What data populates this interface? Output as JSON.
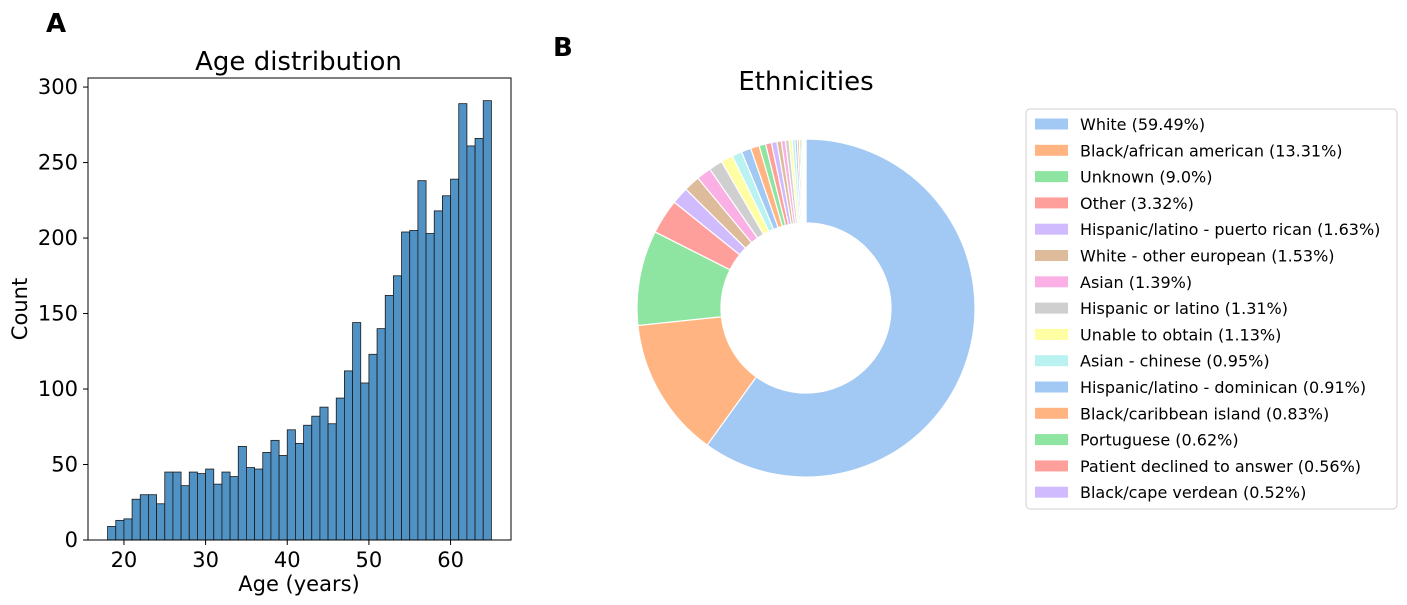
{
  "chart_data": [
    {
      "panel": "A",
      "type": "bar",
      "title": "Age distribution",
      "xlabel": "Age (years)",
      "ylabel": "Count",
      "bar_color": "#5192C5",
      "edge_color": "#1a1a1a",
      "xlim": [
        15.6,
        67.4
      ],
      "ylim": [
        0,
        306
      ],
      "xticks": [
        20,
        30,
        40,
        50,
        60
      ],
      "yticks": [
        0,
        50,
        100,
        150,
        200,
        250,
        300
      ],
      "bins": [
        {
          "x0": 18,
          "x1": 19,
          "count": 9
        },
        {
          "x0": 19,
          "x1": 20,
          "count": 13
        },
        {
          "x0": 20,
          "x1": 21,
          "count": 14
        },
        {
          "x0": 21,
          "x1": 22,
          "count": 27
        },
        {
          "x0": 22,
          "x1": 23,
          "count": 30
        },
        {
          "x0": 23,
          "x1": 24,
          "count": 30
        },
        {
          "x0": 24,
          "x1": 25,
          "count": 24
        },
        {
          "x0": 25,
          "x1": 26,
          "count": 45
        },
        {
          "x0": 26,
          "x1": 27,
          "count": 45
        },
        {
          "x0": 27,
          "x1": 28,
          "count": 36
        },
        {
          "x0": 28,
          "x1": 29,
          "count": 45
        },
        {
          "x0": 29,
          "x1": 30,
          "count": 44
        },
        {
          "x0": 30,
          "x1": 31,
          "count": 47
        },
        {
          "x0": 31,
          "x1": 32,
          "count": 37
        },
        {
          "x0": 32,
          "x1": 33,
          "count": 45
        },
        {
          "x0": 33,
          "x1": 34,
          "count": 42
        },
        {
          "x0": 34,
          "x1": 35,
          "count": 62
        },
        {
          "x0": 35,
          "x1": 36,
          "count": 48
        },
        {
          "x0": 36,
          "x1": 37,
          "count": 47
        },
        {
          "x0": 37,
          "x1": 38,
          "count": 58
        },
        {
          "x0": 38,
          "x1": 39,
          "count": 66
        },
        {
          "x0": 39,
          "x1": 40,
          "count": 56
        },
        {
          "x0": 40,
          "x1": 41,
          "count": 73
        },
        {
          "x0": 41,
          "x1": 42,
          "count": 64
        },
        {
          "x0": 42,
          "x1": 43,
          "count": 76
        },
        {
          "x0": 43,
          "x1": 44,
          "count": 82
        },
        {
          "x0": 44,
          "x1": 45,
          "count": 88
        },
        {
          "x0": 45,
          "x1": 46,
          "count": 77
        },
        {
          "x0": 46,
          "x1": 47,
          "count": 94
        },
        {
          "x0": 47,
          "x1": 48,
          "count": 112
        },
        {
          "x0": 48,
          "x1": 49,
          "count": 144
        },
        {
          "x0": 49,
          "x1": 50,
          "count": 104
        },
        {
          "x0": 50,
          "x1": 51,
          "count": 123
        },
        {
          "x0": 51,
          "x1": 52,
          "count": 140
        },
        {
          "x0": 52,
          "x1": 53,
          "count": 162
        },
        {
          "x0": 53,
          "x1": 54,
          "count": 175
        },
        {
          "x0": 54,
          "x1": 55,
          "count": 204
        },
        {
          "x0": 55,
          "x1": 56,
          "count": 205
        },
        {
          "x0": 56,
          "x1": 57,
          "count": 238
        },
        {
          "x0": 57,
          "x1": 58,
          "count": 203
        },
        {
          "x0": 58,
          "x1": 59,
          "count": 218
        },
        {
          "x0": 59,
          "x1": 60,
          "count": 228
        },
        {
          "x0": 60,
          "x1": 61,
          "count": 239
        },
        {
          "x0": 61,
          "x1": 62,
          "count": 289
        },
        {
          "x0": 62,
          "x1": 63,
          "count": 261
        },
        {
          "x0": 63,
          "x1": 64,
          "count": 266
        },
        {
          "x0": 64,
          "x1": 65,
          "count": 291
        }
      ]
    },
    {
      "panel": "B",
      "type": "pie",
      "donut": true,
      "title": "Ethnicities",
      "legend_position": "right",
      "wedge_edge_color": "#ffffff",
      "palette": [
        "#A1C9F4",
        "#FFB482",
        "#8DE5A1",
        "#FF9F9B",
        "#D0BBFF",
        "#DEBB9B",
        "#FAB0E4",
        "#CFCFCF",
        "#FFFEA3",
        "#B9F2F0"
      ],
      "slices": [
        {
          "label": "White (59.49%)",
          "value": 59.49,
          "color": "#A1C9F4"
        },
        {
          "label": "Black/african american (13.31%)",
          "value": 13.31,
          "color": "#FFB482"
        },
        {
          "label": "Unknown (9.0%)",
          "value": 9.0,
          "color": "#8DE5A1"
        },
        {
          "label": "Other (3.32%)",
          "value": 3.32,
          "color": "#FF9F9B"
        },
        {
          "label": "Hispanic/latino - puerto rican (1.63%)",
          "value": 1.63,
          "color": "#D0BBFF"
        },
        {
          "label": "White - other european (1.53%)",
          "value": 1.53,
          "color": "#DEBB9B"
        },
        {
          "label": "Asian (1.39%)",
          "value": 1.39,
          "color": "#FAB0E4"
        },
        {
          "label": "Hispanic or latino (1.31%)",
          "value": 1.31,
          "color": "#CFCFCF"
        },
        {
          "label": "Unable to obtain (1.13%)",
          "value": 1.13,
          "color": "#FFFEA3"
        },
        {
          "label": "Asian - chinese (0.95%)",
          "value": 0.95,
          "color": "#B9F2F0"
        },
        {
          "label": "Hispanic/latino - dominican (0.91%)",
          "value": 0.91,
          "color": "#A1C9F4"
        },
        {
          "label": "Black/caribbean island (0.83%)",
          "value": 0.83,
          "color": "#FFB482"
        },
        {
          "label": "Portuguese (0.62%)",
          "value": 0.62,
          "color": "#8DE5A1"
        },
        {
          "label": "Patient declined to answer (0.56%)",
          "value": 0.56,
          "color": "#FF9F9B"
        },
        {
          "label": "Black/cape verdean (0.52%)",
          "value": 0.52,
          "color": "#D0BBFF"
        }
      ],
      "unlabeled_small_slices": [
        0.42,
        0.38,
        0.34,
        0.3,
        0.26,
        0.22,
        0.19,
        0.16,
        0.14,
        0.12,
        0.11,
        0.1
      ]
    }
  ]
}
